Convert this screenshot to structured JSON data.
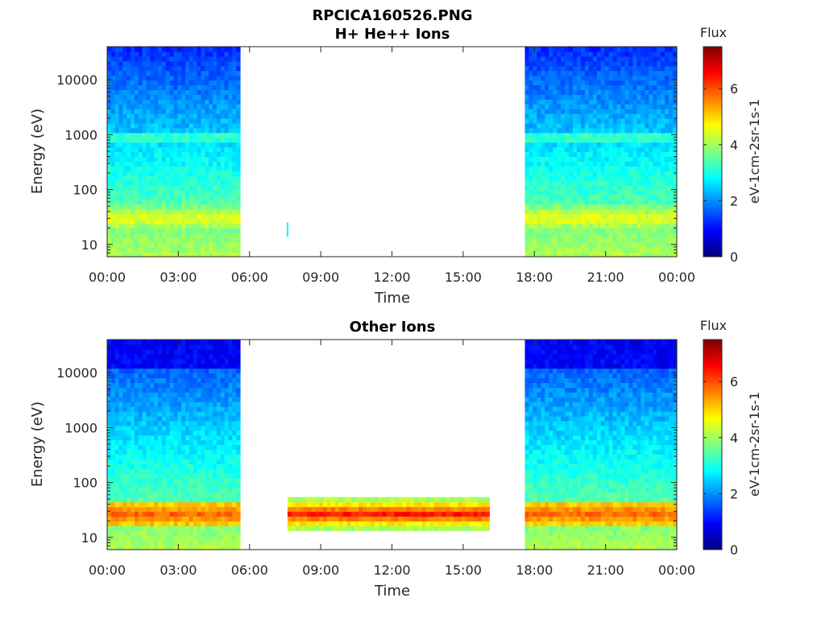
{
  "figure": {
    "title_line1": "RPCICA160526.PNG"
  },
  "colors": {
    "axis": "#262626",
    "colormap": "jet",
    "empty": "#ffffff"
  },
  "chart_data": [
    {
      "type": "heatmap",
      "title": "H+ He++ Ions",
      "xlabel": "Time",
      "ylabel": "Energy (eV)",
      "x_ticks": [
        "00:00",
        "03:00",
        "06:00",
        "09:00",
        "12:00",
        "15:00",
        "18:00",
        "21:00",
        "00:00"
      ],
      "x_range_hours": [
        0,
        24
      ],
      "y_scale": "log",
      "y_ticks": [
        10,
        100,
        1000,
        10000
      ],
      "y_tick_labels": [
        "10",
        "100",
        "1000",
        "10000"
      ],
      "y_range": [
        6,
        40000
      ],
      "data_intervals_hours": [
        [
          0.0,
          5.6
        ],
        [
          17.6,
          24.0
        ]
      ],
      "gaps_hours": [
        [
          5.6,
          17.6
        ]
      ],
      "isolated_blip": {
        "hour": 7.6,
        "energy_ev": 18
      },
      "bands": [
        {
          "energy_ev": 30,
          "flux": 4.6
        },
        {
          "energy_ev": 900,
          "flux": 3.4
        }
      ],
      "colorbar": {
        "title": "Flux",
        "label": "eV-1cm-2sr-1s-1",
        "range": [
          0,
          7.5
        ],
        "ticks": [
          0,
          2,
          4,
          6
        ],
        "tick_labels": [
          "0",
          "2",
          "4",
          "6"
        ]
      }
    },
    {
      "type": "heatmap",
      "title": "Other Ions",
      "xlabel": "Time",
      "ylabel": "Energy (eV)",
      "x_ticks": [
        "00:00",
        "03:00",
        "06:00",
        "09:00",
        "12:00",
        "15:00",
        "18:00",
        "21:00",
        "00:00"
      ],
      "x_range_hours": [
        0,
        24
      ],
      "y_scale": "log",
      "y_ticks": [
        10,
        100,
        1000,
        10000
      ],
      "y_tick_labels": [
        "10",
        "100",
        "1000",
        "10000"
      ],
      "y_range": [
        6,
        40000
      ],
      "data_intervals_hours": [
        [
          0.0,
          5.6
        ],
        [
          7.6,
          16.1
        ],
        [
          17.6,
          24.0
        ]
      ],
      "gaps_hours": [
        [
          5.6,
          7.6
        ],
        [
          16.1,
          17.6
        ]
      ],
      "bands": [
        {
          "energy_ev": 27,
          "flux": 5.8
        },
        {
          "energy_ev": 850,
          "flux": 2.2
        }
      ],
      "colorbar": {
        "title": "Flux",
        "label": "eV-1cm-2sr-1s-1",
        "range": [
          0,
          7.5
        ],
        "ticks": [
          0,
          2,
          4,
          6
        ],
        "tick_labels": [
          "0",
          "2",
          "4",
          "6"
        ]
      }
    }
  ]
}
